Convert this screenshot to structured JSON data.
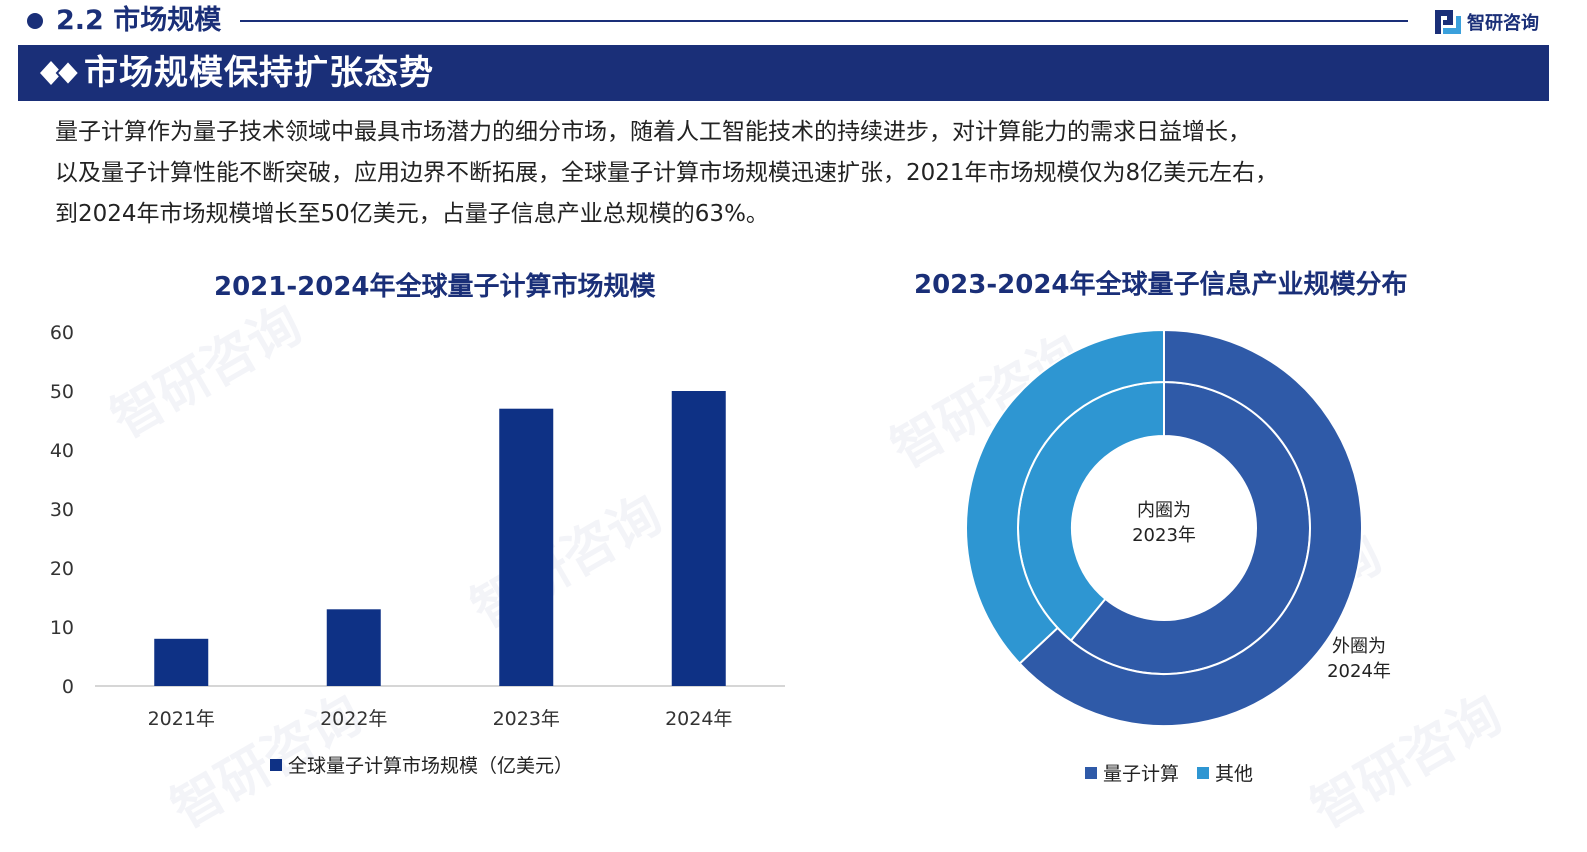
{
  "header": {
    "section_title": "2.2 市场规模",
    "brand_name": "智研咨询",
    "banner_title": "市场规模保持扩张态势"
  },
  "paragraph": {
    "lines": [
      "量子计算作为量子技术领域中最具市场潜力的细分市场，随着人工智能技术的持续进步，对计算能力的需求日益增长，",
      "以及量子计算性能不断突破，应用边界不断拓展，全球量子计算市场规模迅速扩张，2021年市场规模仅为8亿美元左右，",
      "到2024年市场规模增长至50亿美元，占量子信息产业总规模的63%。"
    ]
  },
  "watermark_text": "智研咨询",
  "colors": {
    "navy": "#1a2f78",
    "bar": "#0e3185",
    "donut_quantum": "#2f5aa8",
    "donut_other": "#2e96d2"
  },
  "chart_data": [
    {
      "type": "bar",
      "title": "2021-2024年全球量子计算市场规模",
      "categories": [
        "2021年",
        "2022年",
        "2023年",
        "2024年"
      ],
      "series": [
        {
          "name": "全球量子计算市场规模（亿美元）",
          "values": [
            8,
            13,
            47,
            50
          ]
        }
      ],
      "y_ticks": [
        "0",
        "10",
        "20",
        "30",
        "40",
        "50",
        "60"
      ],
      "ylim": [
        0,
        60
      ],
      "grid": false,
      "legend": "bottom"
    },
    {
      "type": "pie",
      "variant": "donut",
      "title": "2023-2024年全球量子信息产业规模分布",
      "categories": [
        "量子计算",
        "其他"
      ],
      "rings": [
        {
          "label": "内圈为2023年",
          "values": [
            61,
            39
          ]
        },
        {
          "label": "外圈为2024年",
          "values": [
            63,
            37
          ]
        }
      ],
      "inner_label_lines": [
        "内圈为",
        "2023年"
      ],
      "outer_label_lines": [
        "外圈为",
        "2024年"
      ],
      "legend": "bottom"
    }
  ]
}
